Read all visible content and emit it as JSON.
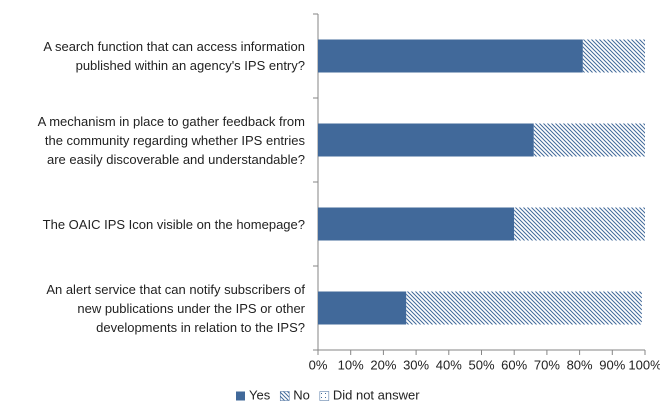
{
  "chart_data": {
    "type": "stacked-bar-horizontal",
    "categories": [
      "A search function that can access information\npublished within an agency's IPS entry?",
      "A mechanism in place to gather feedback from\nthe community regarding whether IPS entries\nare easily discoverable and understandable?",
      "The OAIC IPS Icon visible on the homepage?",
      "An alert service that can notify subscribers of\nnew publications under the IPS or other\ndevelopments in relation to the IPS?"
    ],
    "series": [
      {
        "name": "Yes",
        "color": "#41699a",
        "fill": "solid",
        "values": [
          81,
          66,
          60,
          27
        ]
      },
      {
        "name": "No",
        "color": "#41699a",
        "fill": "diagonal-hatch",
        "values": [
          19,
          34,
          40,
          72
        ]
      },
      {
        "name": "Did not answer",
        "color": "#41699a",
        "fill": "dots",
        "values": [
          0,
          0,
          0,
          1
        ]
      }
    ],
    "xlim": [
      0,
      100
    ],
    "xticks": [
      {
        "value": 0,
        "label": "0%"
      },
      {
        "value": 10,
        "label": "10%"
      },
      {
        "value": 20,
        "label": "20%"
      },
      {
        "value": 30,
        "label": "30%"
      },
      {
        "value": 40,
        "label": "40%"
      },
      {
        "value": 50,
        "label": "50%"
      },
      {
        "value": 60,
        "label": "60%"
      },
      {
        "value": 70,
        "label": "70%"
      },
      {
        "value": 80,
        "label": "80%"
      },
      {
        "value": 90,
        "label": "90%"
      },
      {
        "value": 100,
        "label": "100%"
      }
    ],
    "legend": "bottom"
  }
}
